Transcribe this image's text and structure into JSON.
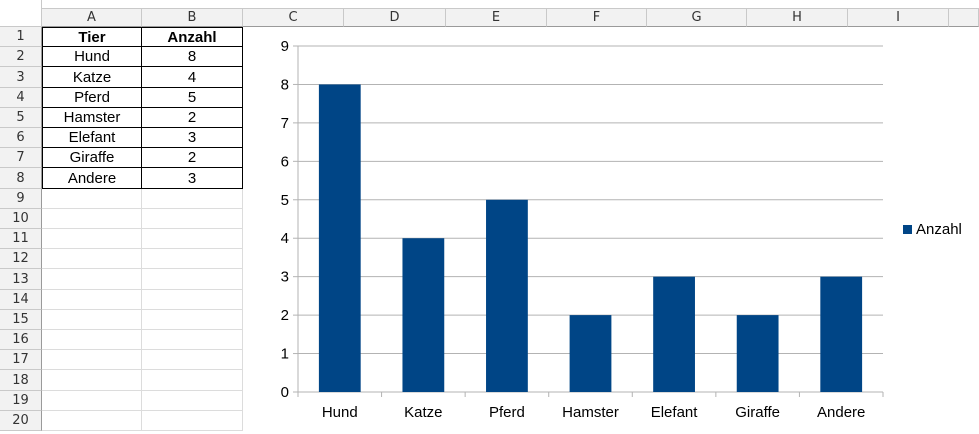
{
  "spreadsheet": {
    "columns": [
      "A",
      "B",
      "C",
      "D",
      "E",
      "F",
      "G",
      "H",
      "I"
    ],
    "rows": [
      "1",
      "2",
      "3",
      "4",
      "5",
      "6",
      "7",
      "8",
      "9",
      "10",
      "11",
      "12",
      "13",
      "14",
      "15",
      "16",
      "17",
      "18",
      "19",
      "20"
    ],
    "table": {
      "headers": [
        "Tier",
        "Anzahl"
      ],
      "rows": [
        [
          "Hund",
          "8"
        ],
        [
          "Katze",
          "4"
        ],
        [
          "Pferd",
          "5"
        ],
        [
          "Hamster",
          "2"
        ],
        [
          "Elefant",
          "3"
        ],
        [
          "Giraffe",
          "2"
        ],
        [
          "Andere",
          "3"
        ]
      ]
    }
  },
  "chart_data": {
    "type": "bar",
    "categories": [
      "Hund",
      "Katze",
      "Pferd",
      "Hamster",
      "Elefant",
      "Giraffe",
      "Andere"
    ],
    "series": [
      {
        "name": "Anzahl",
        "values": [
          8,
          4,
          5,
          2,
          3,
          2,
          3
        ]
      }
    ],
    "y_ticks": [
      "0",
      "1",
      "2",
      "3",
      "4",
      "5",
      "6",
      "7",
      "8",
      "9"
    ],
    "ylim": [
      0,
      9
    ],
    "grid": true,
    "legend_position": "right",
    "bar_color": "#004586",
    "grid_color": "#b3b3b3"
  }
}
